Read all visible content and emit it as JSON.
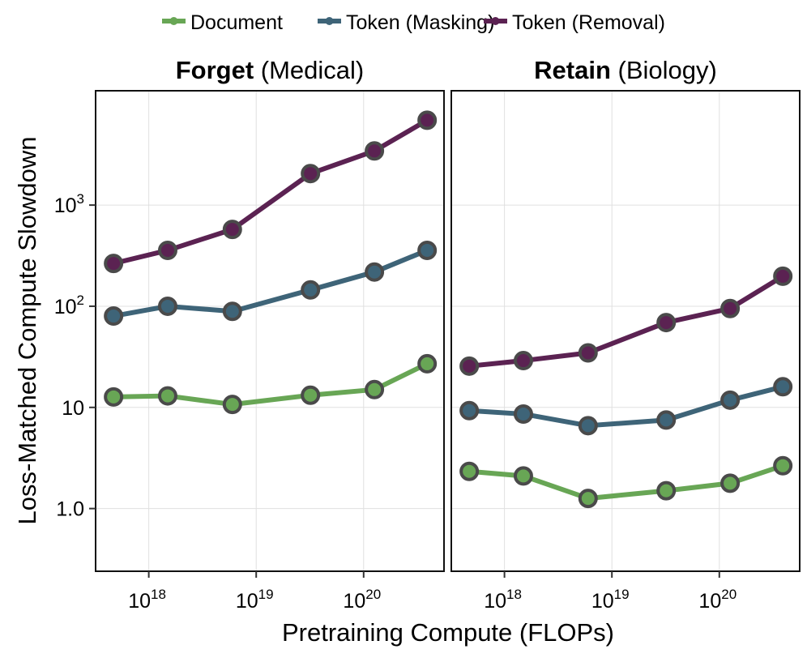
{
  "chart_data": {
    "type": "line",
    "xlabel": "Pretraining Compute (FLOPs)",
    "ylabel": "Loss-Matched Compute Slowdown",
    "x_scale": "log",
    "y_scale": "log",
    "xlim": [
      3.2e+17,
      5.6e+20
    ],
    "ylim": [
      0.24,
      13500
    ],
    "grid": true,
    "legend_placement": "top-center",
    "x_ticks": [
      {
        "value": 1e+18,
        "base": "10",
        "exp": "18"
      },
      {
        "value": 1e+19,
        "base": "10",
        "exp": "19"
      },
      {
        "value": 1e+20,
        "base": "10",
        "exp": "20"
      }
    ],
    "y_ticks": [
      {
        "value": 1,
        "label": "1.0"
      },
      {
        "value": 10,
        "label": "10"
      },
      {
        "value": 100,
        "base": "10",
        "exp": "2"
      },
      {
        "value": 1000,
        "base": "10",
        "exp": "3"
      }
    ],
    "x": [
      4.7e+17,
      1.5e+18,
      6e+18,
      3.2e+19,
      1.26e+20,
      3.9e+20
    ],
    "series_styles": [
      {
        "name": "Document",
        "color": "#68a655"
      },
      {
        "name": "Token (Masking)",
        "color": "#3e6478"
      },
      {
        "name": "Token (Removal)",
        "color": "#5b2252"
      }
    ],
    "marker_edge_color": "#4a4a4a",
    "panels": [
      {
        "title_bold": "Forget",
        "title_rest": " (Medical)",
        "series": [
          {
            "name": "Document",
            "values": [
              12.7,
              13,
              10.7,
              13.2,
              15,
              27
            ]
          },
          {
            "name": "Token (Masking)",
            "values": [
              80,
              100,
              89,
              145,
              218,
              357
            ]
          },
          {
            "name": "Token (Removal)",
            "values": [
              265,
              357,
              575,
              2050,
              3430,
              6900
            ]
          }
        ]
      },
      {
        "title_bold": "Retain",
        "title_rest": " (Biology)",
        "series": [
          {
            "name": "Document",
            "values": [
              2.33,
              2.1,
              1.26,
              1.5,
              1.78,
              2.65
            ]
          },
          {
            "name": "Token (Masking)",
            "values": [
              9.3,
              8.6,
              6.6,
              7.5,
              11.8,
              16
            ]
          },
          {
            "name": "Token (Removal)",
            "values": [
              25.6,
              29,
              34.6,
              69,
              95,
              198
            ]
          }
        ]
      }
    ]
  }
}
